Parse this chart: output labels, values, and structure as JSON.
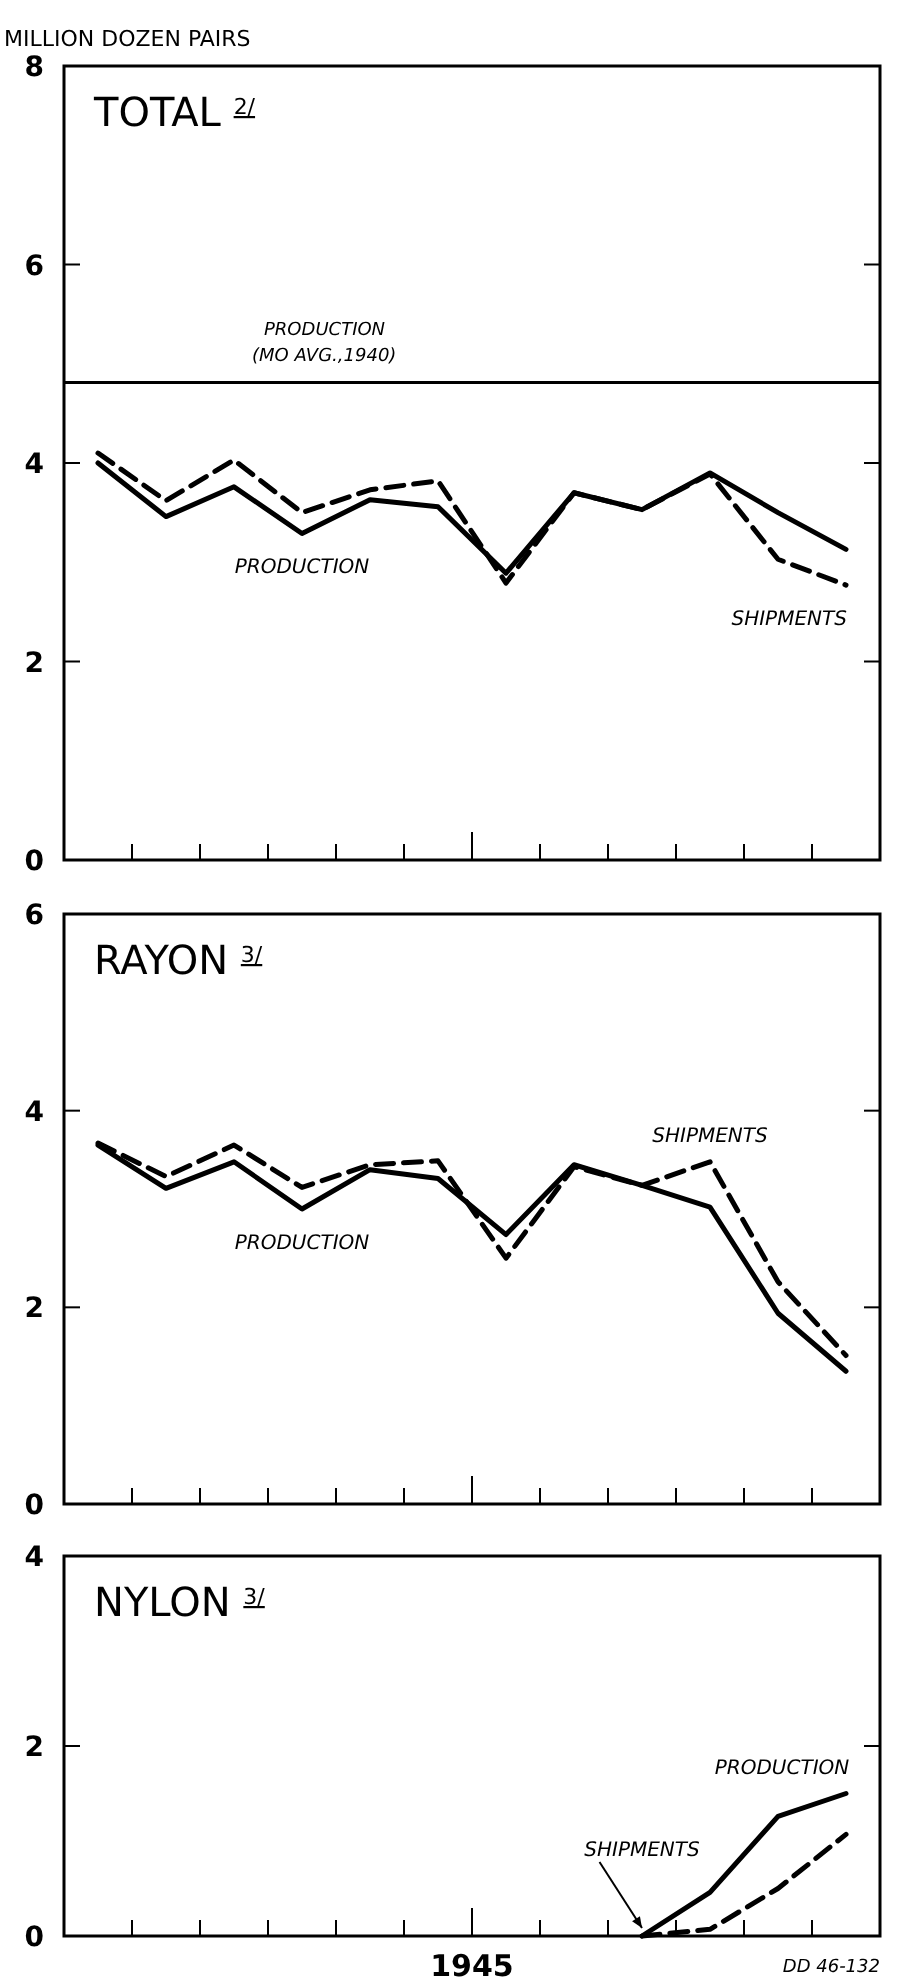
{
  "chart_data": [
    {
      "type": "line",
      "title": "TOTAL $^{2/}$",
      "ylabel": "MILLION DOZEN PAIRS",
      "categories": [
        null,
        null,
        null,
        null,
        null,
        null,
        null,
        null,
        null,
        null,
        null,
        null
      ],
      "ylim": [
        0,
        8
      ],
      "yticks": [
        0,
        2,
        4,
        6,
        8
      ],
      "tick_labels": "y",
      "grid": false,
      "series": [
        {
          "name": "PRODUCTION",
          "color": "#000000",
          "line_style": "solid",
          "values": [
            4.0,
            3.46,
            3.76,
            3.29,
            3.63,
            3.56,
            2.89,
            3.7,
            3.53,
            3.9,
            3.5,
            3.13
          ]
        },
        {
          "name": "SHIPMENTS",
          "color": "#000000",
          "line_style": "dashed",
          "values": [
            4.1,
            3.62,
            4.03,
            3.5,
            3.73,
            3.82,
            2.79,
            3.7,
            3.53,
            3.89,
            3.03,
            2.77
          ]
        }
      ],
      "ref_lines": [
        {
          "axis": "y",
          "value": 4.81,
          "label": "PRODUCTION (MO AVG.,1940)"
        }
      ]
    },
    {
      "type": "line",
      "title": "RAYON $^{3/}$",
      "categories": [
        null,
        null,
        null,
        null,
        null,
        null,
        null,
        null,
        null,
        null,
        null,
        null
      ],
      "ylim": [
        0,
        6
      ],
      "yticks": [
        0,
        2,
        4,
        6
      ],
      "tick_labels": "y",
      "grid": false,
      "series": [
        {
          "name": "PRODUCTION",
          "color": "#000000",
          "line_style": "solid",
          "values": [
            3.65,
            3.21,
            3.48,
            3.0,
            3.4,
            3.31,
            2.74,
            3.45,
            3.24,
            3.02,
            1.94,
            1.35
          ]
        },
        {
          "name": "SHIPMENTS",
          "color": "#000000",
          "line_style": "dashed",
          "values": [
            3.67,
            3.33,
            3.65,
            3.22,
            3.45,
            3.49,
            2.5,
            3.43,
            3.24,
            3.48,
            2.26,
            1.51
          ]
        }
      ]
    },
    {
      "type": "line",
      "title": "NYLON $^{3/}$",
      "xlabel": "1945",
      "categories": [
        null,
        null,
        null,
        null,
        null,
        null,
        null,
        null,
        null,
        null,
        null,
        null
      ],
      "ylim": [
        0,
        4
      ],
      "yticks": [
        0,
        2,
        4
      ],
      "tick_labels": "y",
      "grid": false,
      "series": [
        {
          "name": "PRODUCTION",
          "color": "#000000",
          "line_style": "solid",
          "values": [
            null,
            null,
            null,
            null,
            null,
            null,
            null,
            null,
            0,
            0.46,
            1.26,
            1.5
          ]
        },
        {
          "name": "SHIPMENTS",
          "color": "#000000",
          "line_style": "dashed",
          "values": [
            null,
            null,
            null,
            null,
            null,
            null,
            null,
            null,
            0,
            0.07,
            0.5,
            1.07
          ]
        }
      ],
      "annotations": [
        "DD 46-132"
      ]
    }
  ]
}
